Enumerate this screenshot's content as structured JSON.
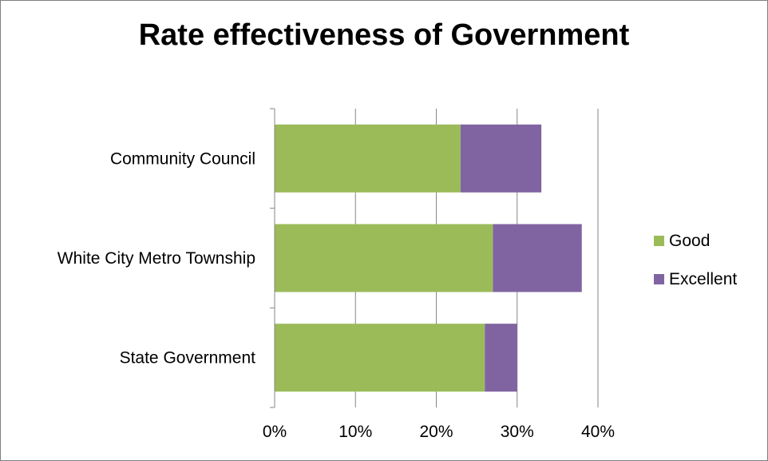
{
  "chart_data": {
    "type": "bar",
    "orientation": "horizontal",
    "stacked": true,
    "title": "Rate effectiveness of Government",
    "categories": [
      "Community Council",
      "White City Metro Township",
      "State Government"
    ],
    "series": [
      {
        "name": "Good",
        "color": "#9bbb59",
        "values": [
          23,
          27,
          26
        ]
      },
      {
        "name": "Excellent",
        "color": "#8064a2",
        "values": [
          10,
          11,
          4
        ]
      }
    ],
    "xlim": [
      0,
      40
    ],
    "x_ticks": [
      0,
      10,
      20,
      30,
      40
    ],
    "tick_labels": [
      "0%",
      "10%",
      "20%",
      "30%",
      "40%"
    ],
    "value_unit": "percent",
    "grid": "vertical",
    "legend_position": "right"
  }
}
